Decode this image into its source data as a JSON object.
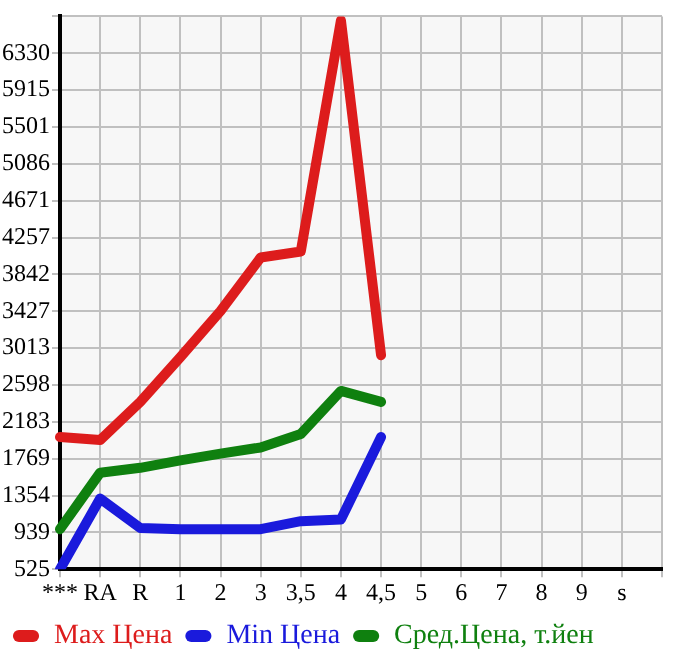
{
  "chart_data": {
    "type": "line",
    "categories": [
      "***",
      "RA",
      "R",
      "1",
      "2",
      "3",
      "3,5",
      "4",
      "4,5",
      "5",
      "6",
      "7",
      "8",
      "9",
      "s",
      null
    ],
    "series": [
      {
        "name": "Max Цена",
        "color": "#dd1c1c",
        "values": [
          2012,
          1978,
          2407,
          2911,
          3430,
          4032,
          4100,
          6700,
          2932,
          null,
          null,
          null,
          null,
          null,
          null,
          null
        ]
      },
      {
        "name": "Min Цена",
        "color": "#1a1adc",
        "values": [
          525,
          1320,
          988,
          975,
          975,
          975,
          1065,
          1085,
          2012,
          null,
          null,
          null,
          null,
          null,
          null,
          null
        ]
      },
      {
        "name": "Сред.Цена, т.йен",
        "color": "#0f800f",
        "values": [
          975,
          1610,
          1666,
          1749,
          1826,
          1895,
          2046,
          2531,
          2407,
          null,
          null,
          null,
          null,
          null,
          null,
          null
        ]
      }
    ],
    "ylim": [
      525,
      6745
    ],
    "yticks": [
      525,
      939,
      1354,
      1769,
      2183,
      2598,
      3013,
      3427,
      3842,
      4257,
      4671,
      5086,
      5501,
      5915,
      6330,
      {
        "value": 6745,
        "label": null
      }
    ],
    "grid": true,
    "legend": "bottom",
    "marker": "none",
    "line_style": "solid"
  }
}
